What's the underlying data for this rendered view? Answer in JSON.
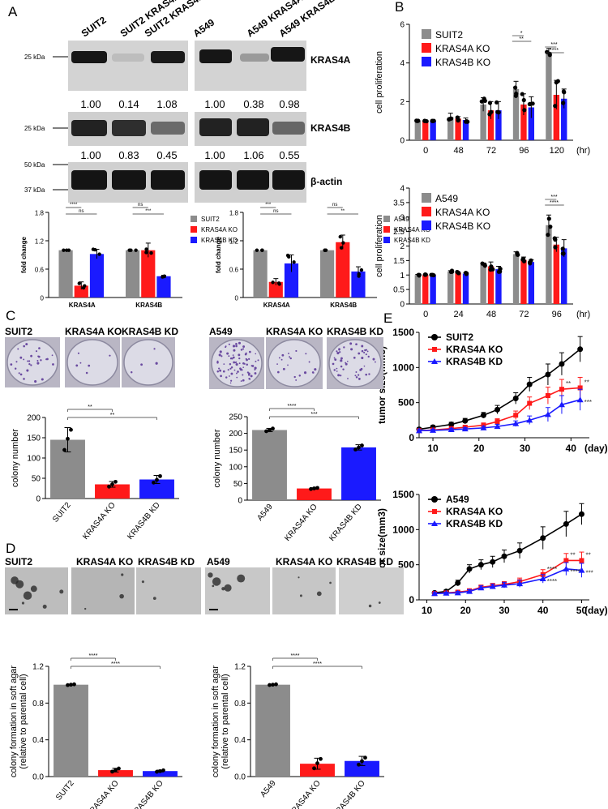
{
  "colors": {
    "grey": "#8c8c8c",
    "red": "#ff1a1a",
    "blue": "#1a1aff",
    "black": "#000000",
    "purple": "#6a4aa0"
  },
  "panels": {
    "A": {
      "label": "A",
      "blot_left": {
        "lanes": [
          "SUIT2",
          "SUIT2 KRAS4A KO",
          "SUIT2 KRAS4B KD"
        ],
        "kras4a_quant": [
          "1.00",
          "0.14",
          "1.08"
        ],
        "kras4b_quant": [
          "1.00",
          "0.83",
          "0.45"
        ]
      },
      "blot_right": {
        "lanes": [
          "A549",
          "A549 KRAS4A KO",
          "A549 KRAS4B KD"
        ],
        "kras4a_quant": [
          "1.00",
          "0.38",
          "0.98"
        ],
        "kras4b_quant": [
          "1.00",
          "1.06",
          "0.55"
        ]
      },
      "mw": {
        "m25a": "25 kDa",
        "m25b": "25 kDa",
        "m50": "50 kDa",
        "m37": "37 kDa"
      },
      "bands": {
        "kras4a": "KRAS4A",
        "kras4b": "KRAS4B",
        "actin": "β-actin"
      },
      "sig": {
        "ns": "ns",
        "s2": "**",
        "s3": "***",
        "s4": "****"
      }
    },
    "B": {
      "label": "B"
    },
    "C": {
      "label": "C",
      "left_titles": [
        "SUIT2",
        "KRAS4A KO",
        "KRAS4B KD"
      ],
      "right_titles": [
        "A549",
        "KRAS4A KO",
        "KRAS4B KD"
      ]
    },
    "D": {
      "label": "D",
      "titles": [
        "SUIT2",
        "KRAS4A KO",
        "KRAS4B KD",
        "A549",
        "KRAS4A KO",
        "KRAS4B KD"
      ]
    },
    "E": {
      "label": "E"
    }
  },
  "chart_data": [
    {
      "id": "A-left-bar",
      "type": "bar",
      "title": "",
      "xlabel": "",
      "ylabel": "fold change",
      "categories": [
        "KRAS4A",
        "KRAS4B"
      ],
      "series": [
        {
          "name": "SUIT2",
          "values": [
            1.0,
            1.0
          ],
          "err": [
            0,
            0
          ]
        },
        {
          "name": "KRAS4A KO",
          "values": [
            0.25,
            1.0
          ],
          "err": [
            0.08,
            0.15
          ]
        },
        {
          "name": "KRAS4B KD",
          "values": [
            0.92,
            0.45
          ],
          "err": [
            0.1,
            0.02
          ]
        }
      ],
      "ylim": [
        0,
        1.8
      ],
      "yticks": [
        "0",
        "0.6",
        "1.2",
        "1.8"
      ],
      "significance": [
        [
          "KRAS4A",
          "SUIT2 vs KRAS4A KO",
          "****"
        ],
        [
          "KRAS4A",
          "SUIT2 vs KRAS4B KD",
          "ns"
        ],
        [
          "KRAS4B",
          "SUIT2 vs KRAS4A KO",
          "ns"
        ],
        [
          "KRAS4B",
          "SUIT2 vs KRAS4B KD",
          "***"
        ]
      ]
    },
    {
      "id": "A-right-bar",
      "type": "bar",
      "title": "",
      "xlabel": "",
      "ylabel": "fold change",
      "categories": [
        "KRAS4A",
        "KRAS4B"
      ],
      "series": [
        {
          "name": "A549",
          "values": [
            1.0,
            1.0
          ],
          "err": [
            0,
            0
          ]
        },
        {
          "name": "KRAS4A KO",
          "values": [
            0.33,
            1.17
          ],
          "err": [
            0.07,
            0.15
          ]
        },
        {
          "name": "KRAS4B KD",
          "values": [
            0.72,
            0.55
          ],
          "err": [
            0.18,
            0.1
          ]
        }
      ],
      "ylim": [
        0,
        1.8
      ],
      "yticks": [
        "0",
        "0.6",
        "1.2",
        "1.8"
      ],
      "significance": [
        [
          "KRAS4A",
          "A549 vs KRAS4A KO",
          "***"
        ],
        [
          "KRAS4A",
          "A549 vs KRAS4B KD",
          "ns"
        ],
        [
          "KRAS4B",
          "A549 vs KRAS4A KO",
          "ns"
        ],
        [
          "KRAS4B",
          "A549 vs KRAS4B KD",
          "**"
        ]
      ]
    },
    {
      "id": "B-top",
      "type": "bar",
      "title": "",
      "xlabel": "(hr)",
      "ylabel": "cell proliferation",
      "categories": [
        "0",
        "48",
        "72",
        "96",
        "120"
      ],
      "series": [
        {
          "name": "SUIT2",
          "values": [
            1.0,
            1.2,
            1.85,
            2.65,
            4.55
          ],
          "err": [
            0.02,
            0.2,
            0.35,
            0.4,
            0.2
          ]
        },
        {
          "name": "KRAS4A KO",
          "values": [
            1.0,
            1.12,
            1.55,
            1.85,
            2.35
          ],
          "err": [
            0.02,
            0.1,
            0.45,
            0.55,
            0.75
          ]
        },
        {
          "name": "KRAS4B KO",
          "values": [
            1.0,
            1.05,
            1.55,
            1.7,
            2.15
          ],
          "err": [
            0.02,
            0.1,
            0.45,
            0.55,
            0.5
          ]
        }
      ],
      "ylim": [
        0,
        6
      ],
      "yticks": [
        "0",
        "2",
        "4",
        "6"
      ],
      "significance": [
        [
          "96",
          "*"
        ],
        [
          "96",
          "**"
        ],
        [
          "120",
          "***"
        ],
        [
          "120",
          "****"
        ]
      ]
    },
    {
      "id": "B-bottom",
      "type": "bar",
      "title": "",
      "xlabel": "(hr)",
      "ylabel": "cell proliferation",
      "categories": [
        "0",
        "24",
        "48",
        "72",
        "96"
      ],
      "series": [
        {
          "name": "A549",
          "values": [
            1.0,
            1.12,
            1.35,
            1.72,
            2.72
          ],
          "err": [
            0.02,
            0.03,
            0.05,
            0.08,
            0.35
          ]
        },
        {
          "name": "KRAS4A KO",
          "values": [
            1.0,
            1.08,
            1.3,
            1.52,
            2.05
          ],
          "err": [
            0.02,
            0.03,
            0.15,
            0.1,
            0.25
          ]
        },
        {
          "name": "KRAS4B KO",
          "values": [
            1.0,
            1.05,
            1.2,
            1.45,
            1.92
          ],
          "err": [
            0.02,
            0.03,
            0.1,
            0.08,
            0.3
          ]
        }
      ],
      "ylim": [
        0,
        4
      ],
      "yticks": [
        "0",
        "0.5",
        "1",
        "1.5",
        "2",
        "2.5",
        "3",
        "3.5",
        "4"
      ],
      "significance": [
        [
          "96",
          "***"
        ],
        [
          "96",
          "****"
        ]
      ]
    },
    {
      "id": "C-left",
      "type": "bar",
      "title": "",
      "xlabel": "",
      "ylabel": "colony number",
      "categories": [
        "SUIT2",
        "KRAS4A KO",
        "KRAS4B KD"
      ],
      "values": [
        145,
        35,
        47
      ],
      "err": [
        30,
        7,
        10
      ],
      "ylim": [
        0,
        200
      ],
      "yticks": [
        "0",
        "50",
        "100",
        "150",
        "200"
      ],
      "significance": [
        [
          "SUIT2 vs KRAS4A KO",
          "**"
        ],
        [
          "SUIT2 vs KRAS4B KD",
          "**"
        ]
      ]
    },
    {
      "id": "C-right",
      "type": "bar",
      "title": "",
      "xlabel": "",
      "ylabel": "colony number",
      "categories": [
        "A549",
        "KRAS4A KO",
        "KRAS4B KD"
      ],
      "values": [
        210,
        35,
        158
      ],
      "err": [
        5,
        2,
        8
      ],
      "ylim": [
        0,
        250
      ],
      "yticks": [
        "0",
        "50",
        "100",
        "150",
        "200",
        "250"
      ],
      "significance": [
        [
          "A549 vs KRAS4A KO",
          "****"
        ],
        [
          "A549 vs KRAS4B KD",
          "***"
        ]
      ]
    },
    {
      "id": "D-left",
      "type": "bar",
      "title": "",
      "xlabel": "",
      "ylabel": "colony formation in soft agar (relative to parental cell)",
      "categories": [
        "SUIT2",
        "KRAS4A KO",
        "KRAS4B KO"
      ],
      "values": [
        1.0,
        0.07,
        0.06
      ],
      "err": [
        0.005,
        0.02,
        0.01
      ],
      "ylim": [
        0,
        1.2
      ],
      "yticks": [
        "0.0",
        "0.4",
        "0.8",
        "1.2"
      ],
      "significance": [
        [
          "SUIT2 vs KRAS4A KO",
          "****"
        ],
        [
          "SUIT2 vs KRAS4B KO",
          "****"
        ]
      ]
    },
    {
      "id": "D-right",
      "type": "bar",
      "title": "",
      "xlabel": "",
      "ylabel": "colony formation in soft agar (relative to parental cell)",
      "categories": [
        "A549",
        "KRAS4A KO",
        "KRAS4B KO"
      ],
      "values": [
        1.0,
        0.14,
        0.17
      ],
      "err": [
        0.005,
        0.06,
        0.05
      ],
      "ylim": [
        0,
        1.2
      ],
      "yticks": [
        "0.0",
        "0.4",
        "0.8",
        "1.2"
      ],
      "significance": [
        [
          "A549 vs KRAS4A KO",
          "****"
        ],
        [
          "A549 vs KRAS4B KO",
          "****"
        ]
      ]
    },
    {
      "id": "E-top",
      "type": "line",
      "title": "",
      "xlabel": "(day)",
      "ylabel": "tumor size(mm3)",
      "xticks": [
        "10",
        "20",
        "30",
        "40"
      ],
      "xlim": [
        7,
        44
      ],
      "yticks": [
        "0",
        "500",
        "1000",
        "1500"
      ],
      "ylim": [
        0,
        1500
      ],
      "x": [
        7,
        10,
        14,
        17,
        21,
        24,
        28,
        31,
        35,
        38,
        42
      ],
      "series": [
        {
          "name": "SUIT2",
          "values": [
            120,
            150,
            190,
            240,
            320,
            400,
            560,
            760,
            900,
            1050,
            1260
          ],
          "err": [
            20,
            25,
            30,
            35,
            40,
            60,
            80,
            100,
            150,
            160,
            180
          ]
        },
        {
          "name": "KRAS4A KO",
          "values": [
            100,
            110,
            130,
            150,
            180,
            230,
            320,
            490,
            600,
            690,
            710
          ],
          "err": [
            15,
            20,
            20,
            25,
            30,
            40,
            60,
            90,
            120,
            140,
            150
          ]
        },
        {
          "name": "KRAS4B KD",
          "values": [
            100,
            105,
            115,
            125,
            140,
            160,
            200,
            250,
            330,
            470,
            540
          ],
          "err": [
            15,
            15,
            20,
            20,
            25,
            30,
            40,
            60,
            100,
            130,
            150
          ]
        }
      ],
      "annotations": [
        "**",
        "***",
        "**"
      ]
    },
    {
      "id": "E-bottom",
      "type": "line",
      "title": "",
      "xlabel": "(day)",
      "ylabel": "tumor size(mm3)",
      "xticks": [
        "10",
        "20",
        "30",
        "40",
        "50"
      ],
      "xlim": [
        8,
        52
      ],
      "yticks": [
        "0",
        "500",
        "1000",
        "1500"
      ],
      "ylim": [
        0,
        1500
      ],
      "x": [
        12,
        15,
        18,
        21,
        24,
        27,
        30,
        34,
        40,
        46,
        50
      ],
      "series": [
        {
          "name": "A549",
          "values": [
            100,
            120,
            240,
            440,
            500,
            540,
            620,
            700,
            880,
            1080,
            1220
          ],
          "err": [
            20,
            20,
            40,
            60,
            70,
            80,
            90,
            110,
            160,
            180,
            150
          ]
        },
        {
          "name": "KRAS4A KO",
          "values": [
            90,
            100,
            110,
            130,
            180,
            200,
            220,
            260,
            360,
            560,
            560
          ],
          "err": [
            15,
            15,
            20,
            25,
            30,
            35,
            40,
            50,
            70,
            100,
            120
          ]
        },
        {
          "name": "KRAS4B KD",
          "values": [
            90,
            95,
            100,
            120,
            170,
            190,
            210,
            230,
            300,
            440,
            420
          ],
          "err": [
            15,
            15,
            20,
            25,
            30,
            35,
            40,
            50,
            60,
            90,
            100
          ]
        }
      ],
      "annotations": [
        "**",
        "***",
        "**",
        "****",
        "****",
        "****"
      ]
    }
  ]
}
